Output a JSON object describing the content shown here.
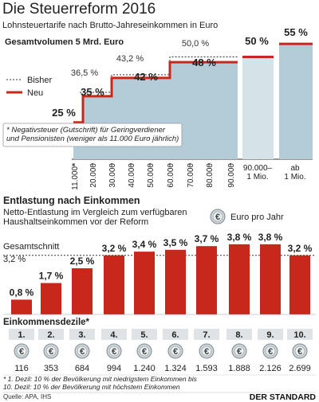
{
  "header": {
    "title": "Die Steuerreform 2016",
    "subtitle": "Lohnsteuertarife nach Brutto-Jahreseinkommen in Euro"
  },
  "chart_data": [
    {
      "type": "step",
      "title": "Gesamtvolumen 5 Mrd. Euro",
      "legend": {
        "old_label": "Bisher",
        "new_label": "Neu",
        "placement": "top-left"
      },
      "x_labels": [
        "11.000*",
        "20.000",
        "30.000",
        "40.000",
        "50.000",
        "60.000",
        "70.000",
        "80.000",
        "90.000",
        "90.000–\n1 Mio.",
        "ab\n1 Mio."
      ],
      "bands": [
        {
          "from": "11.000",
          "to": "18.000",
          "old": "36,5 %",
          "new": "25 %"
        },
        {
          "from": "18.000",
          "to": "31.000",
          "old": "36,5 %",
          "new": "35 %"
        },
        {
          "from": "31.000",
          "to": "60.000",
          "old": "43,2 %",
          "new": "42 %"
        },
        {
          "from": "60.000",
          "to": "90.000",
          "old": "50,0 %",
          "new": "48 %"
        },
        {
          "from": "90.000",
          "to": "1 Mio.",
          "old": "50,0 %",
          "new": "50 %"
        },
        {
          "from": "1 Mio.",
          "to": "",
          "old": "50,0 %",
          "new": "55 %"
        }
      ],
      "old_values": [
        36.5,
        43.2,
        50.0
      ],
      "new_values": [
        25,
        35,
        42,
        48,
        50,
        55
      ],
      "footnote": "* Negativsteuer (Gutschrift) für Geringverdiener\nund Pensionisten (weniger als 11.000 Euro jährlich)",
      "colors": {
        "new": "#c8281c",
        "old": "#333333",
        "band": "#b3ccd7",
        "band_light": "#d5e3e9"
      }
    },
    {
      "type": "bar",
      "title": "Entlastung nach Einkommen",
      "subtitle": "Netto-Entlastung im Vergleich zum verfügbaren\nHaushaltseinkommen vor der Reform",
      "avg_label": "Gesamtschnitt",
      "avg_value": 3.2,
      "avg_value_label": "3,2 %",
      "euro_legend": "Euro pro Jahr",
      "x_title": "Einkommensdezile*",
      "categories": [
        "1.",
        "2.",
        "3.",
        "4.",
        "5.",
        "6.",
        "7.",
        "8.",
        "9.",
        "10."
      ],
      "values": [
        0.8,
        1.7,
        2.5,
        3.2,
        3.4,
        3.5,
        3.7,
        3.8,
        3.8,
        3.2
      ],
      "value_labels": [
        "0,8 %",
        "1,7 %",
        "2,5 %",
        "3,2 %",
        "3,4 %",
        "3,5 %",
        "3,7 %",
        "3,8 %",
        "3,8 %",
        "3,2 %"
      ],
      "euro_per_year": [
        "116",
        "353",
        "684",
        "994",
        "1.240",
        "1.324",
        "1.593",
        "1.888",
        "2.126",
        "2.699"
      ],
      "footnote": "* 1. Dezil: 10 % der Bevölkerung mit niedrigstem Einkommen bis\n10. Dezil: 10 % der Bevölkerung mit höchstem Einkommen",
      "colors": {
        "bar": "#c8281c"
      }
    }
  ],
  "footer": {
    "source": "Quelle: APA, IHS",
    "brand": "DER STANDARD"
  }
}
